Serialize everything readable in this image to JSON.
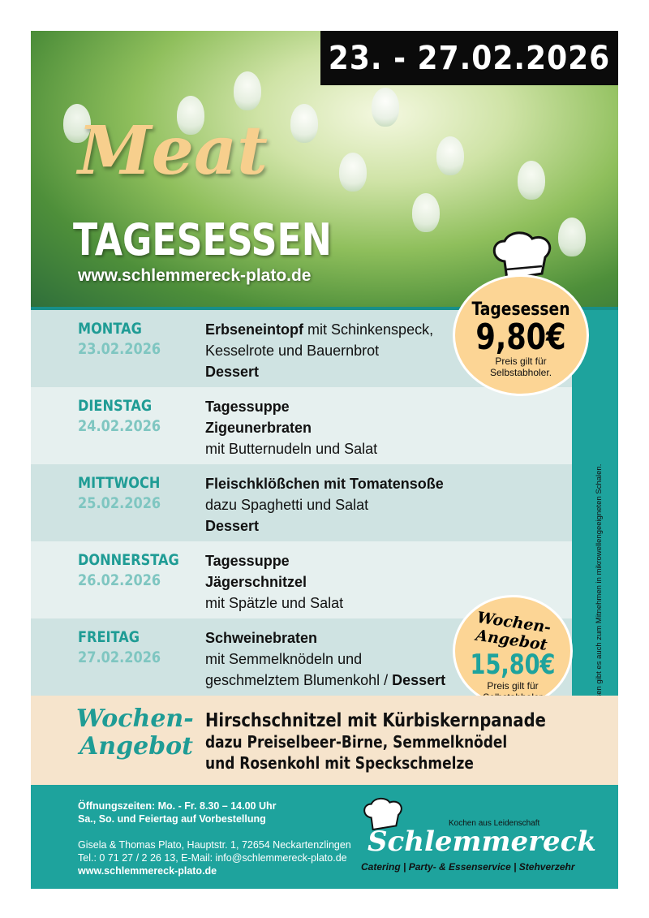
{
  "header": {
    "date_range": "23. - 27.02.2026",
    "title_script": "Meat",
    "title": "TAGESESSEN",
    "website": "www.schlemmereck-plato.de"
  },
  "days": [
    {
      "name": "MONTAG",
      "date": "23.02.2026",
      "lines": [
        [
          {
            "t": "Erbseneintopf",
            "b": true
          },
          {
            "t": " mit Schinkenspeck,",
            "b": false
          }
        ],
        [
          {
            "t": "Kesselrote und Bauernbrot",
            "b": false
          }
        ],
        [
          {
            "t": "Dessert",
            "b": true
          }
        ]
      ]
    },
    {
      "name": "DIENSTAG",
      "date": "24.02.2026",
      "lines": [
        [
          {
            "t": "Tagessuppe",
            "b": true
          }
        ],
        [
          {
            "t": "Zigeunerbraten",
            "b": true
          }
        ],
        [
          {
            "t": "mit Butternudeln und Salat",
            "b": false
          }
        ]
      ]
    },
    {
      "name": "MITTWOCH",
      "date": "25.02.2026",
      "lines": [
        [
          {
            "t": "Fleischklößchen mit Tomatensoße",
            "b": true
          }
        ],
        [
          {
            "t": "dazu Spaghetti und Salat",
            "b": false
          }
        ],
        [
          {
            "t": "Dessert",
            "b": true
          }
        ]
      ]
    },
    {
      "name": "DONNERSTAG",
      "date": "26.02.2026",
      "lines": [
        [
          {
            "t": "Tagessuppe",
            "b": true
          }
        ],
        [
          {
            "t": "Jägerschnitzel",
            "b": true
          }
        ],
        [
          {
            "t": "mit Spätzle und Salat",
            "b": false
          }
        ]
      ]
    },
    {
      "name": "FREITAG",
      "date": "27.02.2026",
      "lines": [
        [
          {
            "t": "Schweinebraten",
            "b": true
          }
        ],
        [
          {
            "t": "mit Semmelknödeln und",
            "b": false
          }
        ],
        [
          {
            "t": "geschmelztem Blumenkohl / ",
            "b": false
          },
          {
            "t": "Dessert",
            "b": true
          }
        ]
      ]
    }
  ],
  "badge_daily": {
    "title": "Tagesessen",
    "price": "9,80€",
    "note1": "Preis gilt für",
    "note2": "Selbstabholer."
  },
  "badge_weekly": {
    "title": "Wochen-Angebot",
    "price": "15,80€",
    "note1": "Preis gilt für",
    "note2": "Selbstabholer"
  },
  "side_note": "Alle Speisen gibt es auch zum Mitnehmen in mikrowellengeeigneten Schalen.",
  "weekly": {
    "label1": "Wochen-",
    "label2": "Angebot",
    "line1": "Hirschschnitzel mit Kürbiskernpanade",
    "line2": "dazu Preiselbeer-Birne, Semmelknödel",
    "line3": "und Rosenkohl mit Speckschmelze"
  },
  "footer": {
    "hours1": "Öffnungszeiten: Mo. - Fr. 8.30 – 14.00 Uhr",
    "hours2": "Sa., So. und Feiertag auf Vorbestellung",
    "address": "Gisela & Thomas Plato, Hauptstr. 1, 72654 Neckartenzlingen",
    "contact": "Tel.: 0 71 27 / 2 26 13, E-Mail: info@schlemmereck-plato.de",
    "website": "www.schlemmereck-plato.de",
    "logo_tagline": "Kochen aus Leidenschaft",
    "logo_name": "Schlemmereck",
    "logo_services": "Catering | Party- & Essenservice | Stehverzehr"
  },
  "colors": {
    "teal": "#1ea39d",
    "day_label": "#1f9c95",
    "date_label": "#7fc6c1",
    "badge": "#fcd595",
    "weekly_band": "#f6e4cc",
    "date_box": "#0b0b0b"
  }
}
